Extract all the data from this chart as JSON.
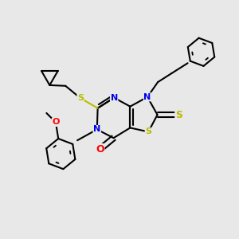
{
  "bg_color": "#e8e8e8",
  "lw": 1.5,
  "lw_ring": 1.4,
  "fc": "#e8e8e8",
  "N_color": "#0000ee",
  "O_color": "#ff0000",
  "S_color": "#bbbb00",
  "black": "#000000",
  "figsize": [
    3.0,
    3.0
  ],
  "dpi": 100,
  "xlim": [
    0,
    10
  ],
  "ylim": [
    0,
    10
  ]
}
